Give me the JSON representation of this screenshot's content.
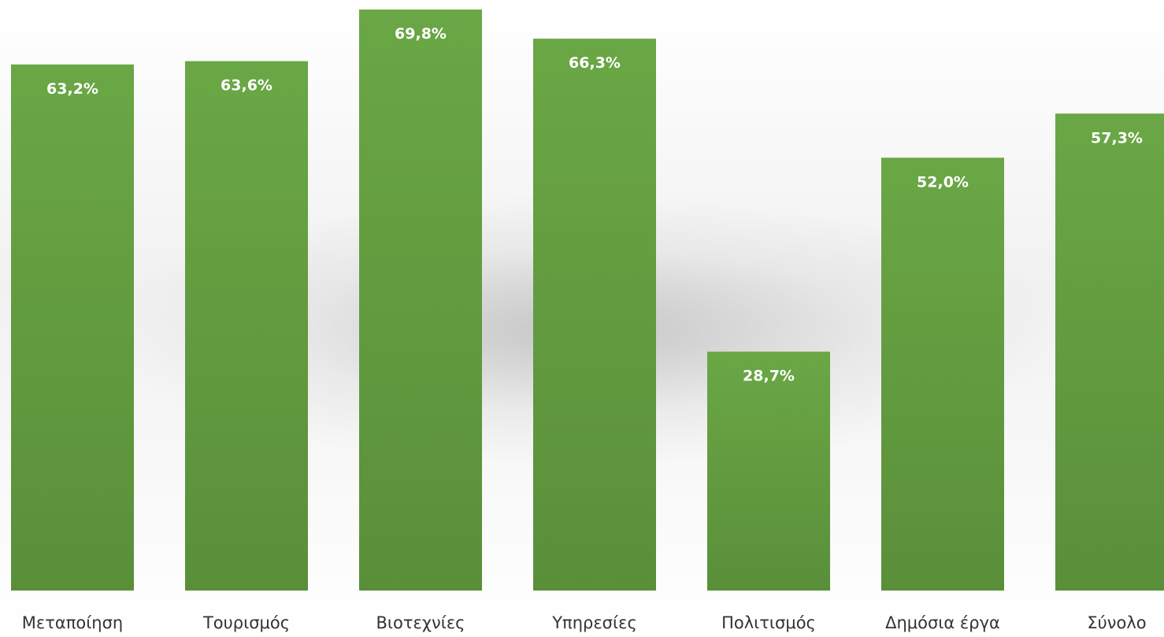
{
  "chart_data": {
    "type": "bar",
    "categories": [
      "Μεταποίηση",
      "Τουρισμός",
      "Βιοτεχνίες",
      "Υπηρεσίες",
      "Πολιτισμός",
      "Δημόσια έργα",
      "Σύνολο"
    ],
    "values": [
      63.2,
      63.6,
      69.8,
      66.3,
      28.7,
      52.0,
      57.3
    ],
    "data_labels": [
      "63,2%",
      "63,6%",
      "69,8%",
      "66,3%",
      "28,7%",
      "52,0%",
      "57,3%"
    ],
    "title": "",
    "xlabel": "",
    "ylabel": "",
    "ylim": [
      0,
      70
    ],
    "grid": false,
    "bar_color": "#6aa745",
    "bar_color_dark": "#5a8f3a",
    "label_color": "#ffffff",
    "category_color": "#333333"
  }
}
